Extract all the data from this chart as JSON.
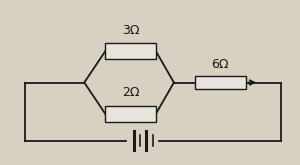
{
  "bg_color": "#d8d0c0",
  "line_color": "#1a1a1a",
  "resistor_color": "#e8e4dc",
  "resistor_border": "#1a1a1a",
  "label_3ohm": "3Ω",
  "label_2ohm": "2Ω",
  "label_6ohm": "6Ω",
  "figsize": [
    3.0,
    1.65
  ],
  "dpi": 100,
  "lw": 1.3
}
